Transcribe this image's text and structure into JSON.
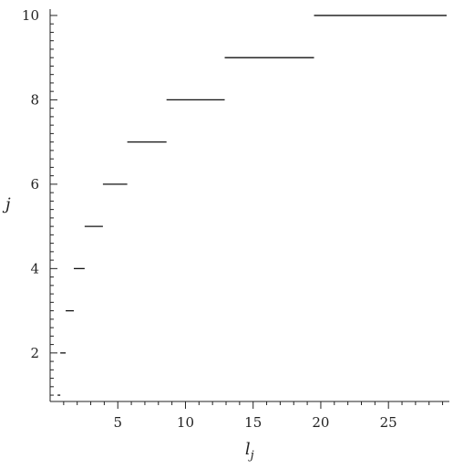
{
  "chart_data": {
    "type": "step",
    "title": "",
    "xlabel": "l",
    "xlabel_subscript": "j",
    "ylabel": "j",
    "xlim": [
      0,
      29.5
    ],
    "ylim": [
      0.85,
      10.15
    ],
    "x_major_ticks": [
      5,
      10,
      15,
      20,
      25
    ],
    "x_tick_labels": [
      "5",
      "10",
      "15",
      "20",
      "25"
    ],
    "y_major_ticks": [
      2,
      4,
      6,
      8,
      10
    ],
    "y_tick_labels": [
      "2",
      "4",
      "6",
      "8",
      "10"
    ],
    "grid": false,
    "legend": "none",
    "line_color": "#111111",
    "segments": [
      {
        "j": 1,
        "x_start": 0.55,
        "x_end": 0.75
      },
      {
        "j": 2,
        "x_start": 0.75,
        "x_end": 1.15
      },
      {
        "j": 3,
        "x_start": 1.15,
        "x_end": 1.75
      },
      {
        "j": 4,
        "x_start": 1.75,
        "x_end": 2.55
      },
      {
        "j": 5,
        "x_start": 2.55,
        "x_end": 3.9
      },
      {
        "j": 6,
        "x_start": 3.9,
        "x_end": 5.7
      },
      {
        "j": 7,
        "x_start": 5.7,
        "x_end": 8.6
      },
      {
        "j": 8,
        "x_start": 8.6,
        "x_end": 12.9
      },
      {
        "j": 9,
        "x_start": 12.9,
        "x_end": 19.5
      },
      {
        "j": 10,
        "x_start": 19.5,
        "x_end": 29.3
      }
    ]
  }
}
